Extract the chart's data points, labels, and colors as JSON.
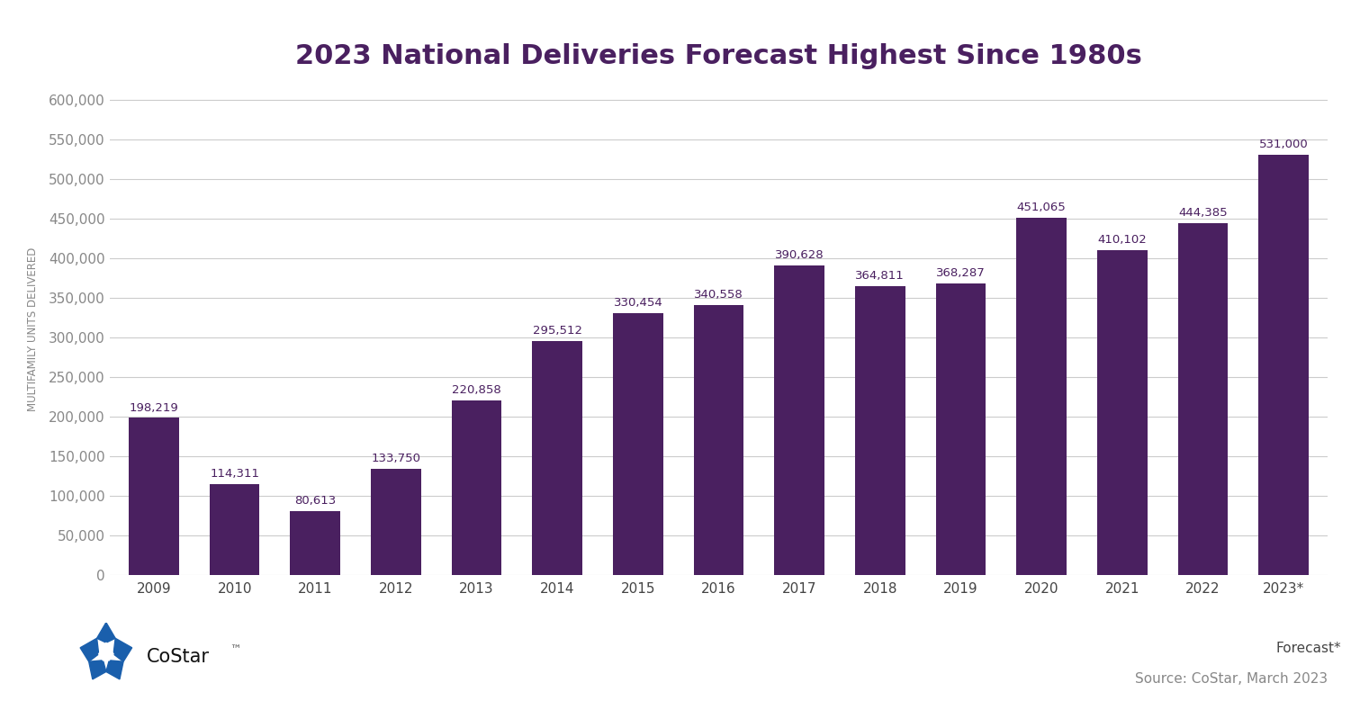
{
  "title": "2023 National Deliveries Forecast Highest Since 1980s",
  "ylabel": "MULTIFAMILY UNITS DELIVERED",
  "source_text": "Source: CoStar, March 2023",
  "forecast_label": "Forecast*",
  "categories": [
    "2009",
    "2010",
    "2011",
    "2012",
    "2013",
    "2014",
    "2015",
    "2016",
    "2017",
    "2018",
    "2019",
    "2020",
    "2021",
    "2022",
    "2023*"
  ],
  "values": [
    198219,
    114311,
    80613,
    133750,
    220858,
    295512,
    330454,
    340558,
    390628,
    364811,
    368287,
    451065,
    410102,
    444385,
    531000
  ],
  "bar_color": "#4a2060",
  "background_color": "#ffffff",
  "title_color": "#4a2060",
  "label_color": "#4a2060",
  "ytick_color": "#888888",
  "xtick_color": "#444444",
  "ylim": [
    0,
    620000
  ],
  "yticks": [
    0,
    50000,
    100000,
    150000,
    200000,
    250000,
    300000,
    350000,
    400000,
    450000,
    500000,
    550000,
    600000
  ],
  "title_fontsize": 22,
  "ylabel_fontsize": 8.5,
  "value_label_fontsize": 9.5,
  "tick_fontsize": 11,
  "source_fontsize": 11,
  "forecast_fontsize": 11,
  "grid_color": "#cccccc",
  "grid_linewidth": 0.8,
  "costar_blue": "#1a5fac",
  "costar_text_color": "#111111",
  "costar_tm_color": "#555555"
}
